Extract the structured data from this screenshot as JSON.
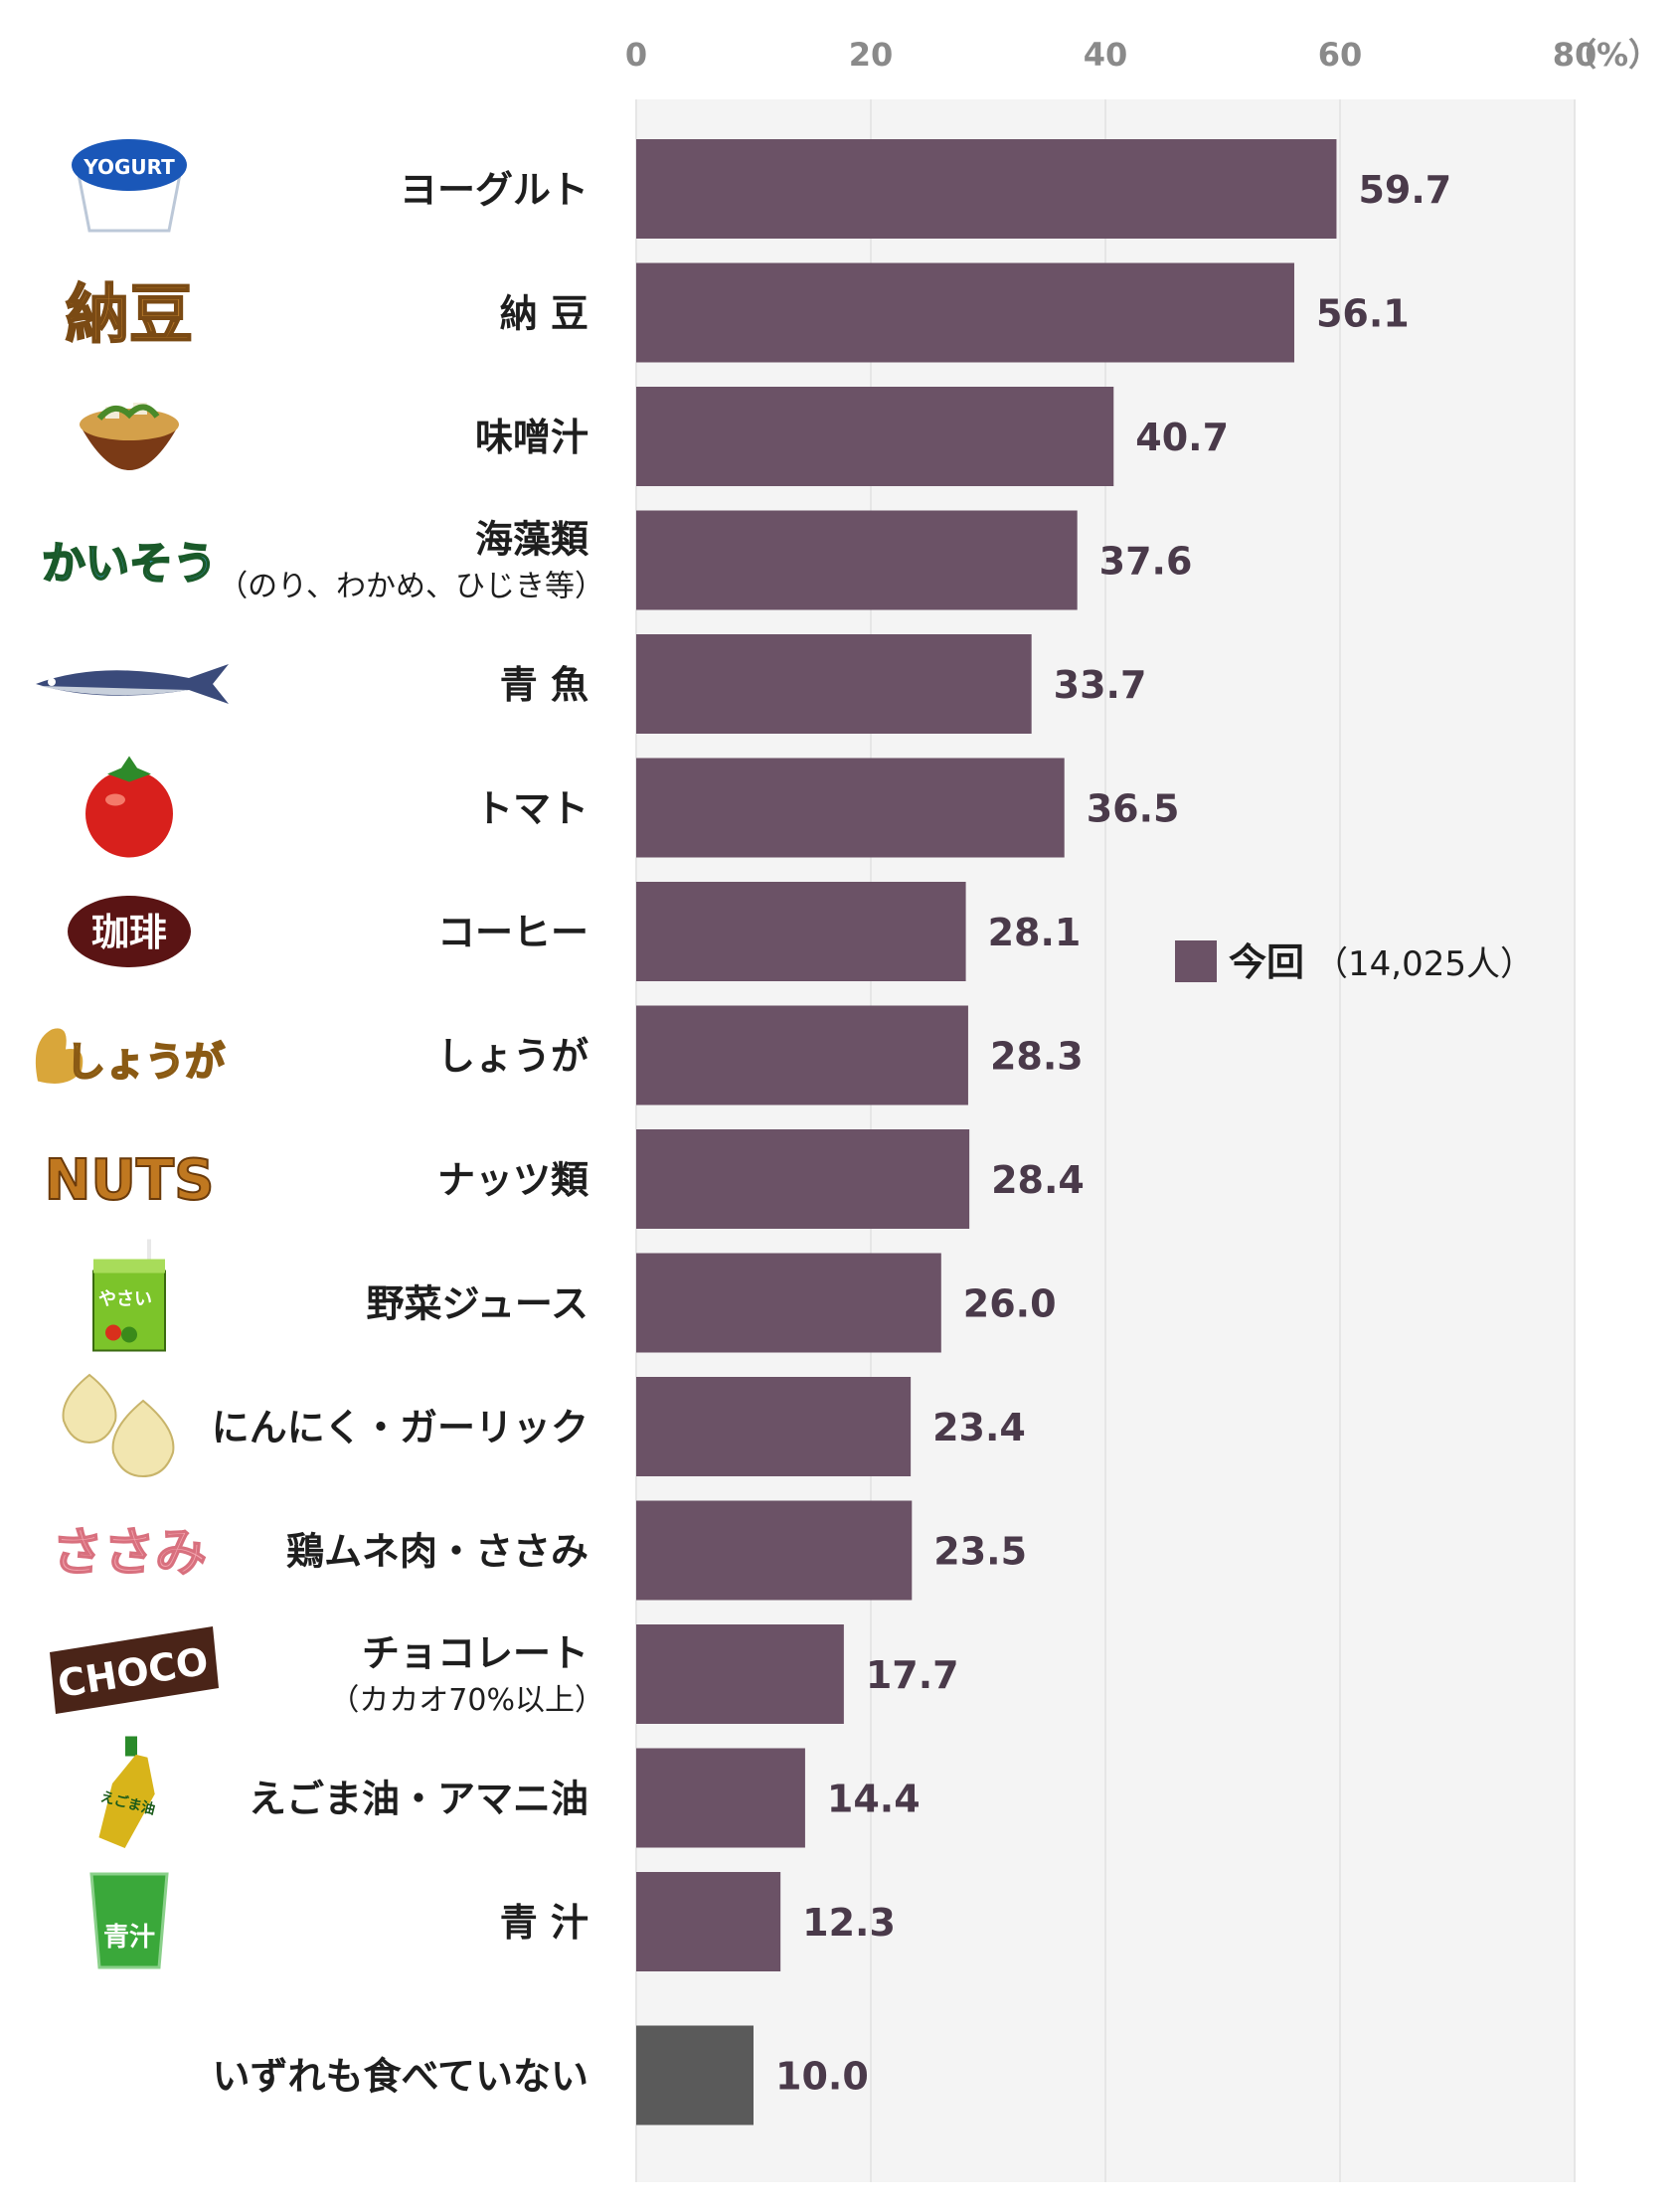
{
  "chart_data": {
    "type": "bar",
    "orientation": "horizontal",
    "xlim": [
      0,
      80
    ],
    "x_ticks": [
      "0",
      "20",
      "40",
      "60",
      "80"
    ],
    "unit": "（%）",
    "grid": true,
    "legend_position": "right",
    "legend": {
      "label": "今回",
      "sample": "（14,025人）"
    },
    "colors": {
      "series": "#6b5266",
      "none_bar": "#5a5a5a",
      "grid": "#e6e6e6",
      "panel": "#f4f4f4"
    },
    "categories": [
      {
        "label": "ヨーグルト",
        "value": 59.7,
        "value_label": "59.7",
        "icon": "yogurt-icon"
      },
      {
        "label": "納 豆",
        "value": 56.1,
        "value_label": "56.1",
        "icon": "natto-icon",
        "icon_text": "納豆"
      },
      {
        "label": "味噌汁",
        "value": 40.7,
        "value_label": "40.7",
        "icon": "miso-soup-icon"
      },
      {
        "label": "海藻類",
        "sublabel": "（のり、わかめ、ひじき等）",
        "value": 37.6,
        "value_label": "37.6",
        "icon": "seaweed-icon",
        "icon_text": "かいそう"
      },
      {
        "label": "青 魚",
        "value": 33.7,
        "value_label": "33.7",
        "icon": "fish-icon"
      },
      {
        "label": "トマト",
        "value": 36.5,
        "value_label": "36.5",
        "icon": "tomato-icon"
      },
      {
        "label": "コーヒー",
        "value": 28.1,
        "value_label": "28.1",
        "icon": "coffee-icon",
        "icon_text": "珈琲"
      },
      {
        "label": "しょうが",
        "value": 28.3,
        "value_label": "28.3",
        "icon": "ginger-icon",
        "icon_text": "しょうが"
      },
      {
        "label": "ナッツ類",
        "value": 28.4,
        "value_label": "28.4",
        "icon": "nuts-icon",
        "icon_text": "NUTS"
      },
      {
        "label": "野菜ジュース",
        "value": 26.0,
        "value_label": "26.0",
        "icon": "vegetable-juice-icon",
        "icon_text": "やさい"
      },
      {
        "label": "にんにく・ガーリック",
        "value": 23.4,
        "value_label": "23.4",
        "icon": "garlic-icon"
      },
      {
        "label": "鶏ムネ肉・ささみ",
        "value": 23.5,
        "value_label": "23.5",
        "icon": "sasami-icon",
        "icon_text": "ささみ"
      },
      {
        "label": "チョコレート",
        "sublabel": "（カカオ70%以上）",
        "value": 17.7,
        "value_label": "17.7",
        "icon": "chocolate-icon",
        "icon_text": "CHOCO"
      },
      {
        "label": "えごま油・アマニ油",
        "value": 14.4,
        "value_label": "14.4",
        "icon": "oil-bottle-icon",
        "icon_text": "えごま油"
      },
      {
        "label": "青 汁",
        "value": 12.3,
        "value_label": "12.3",
        "icon": "aojiru-icon",
        "icon_text": "青汁"
      },
      {
        "label": "いずれも食べていない",
        "value": 10.0,
        "value_label": "10.0",
        "icon": null,
        "none": true
      }
    ],
    "yogurt_icon_text": "YOGURT"
  }
}
